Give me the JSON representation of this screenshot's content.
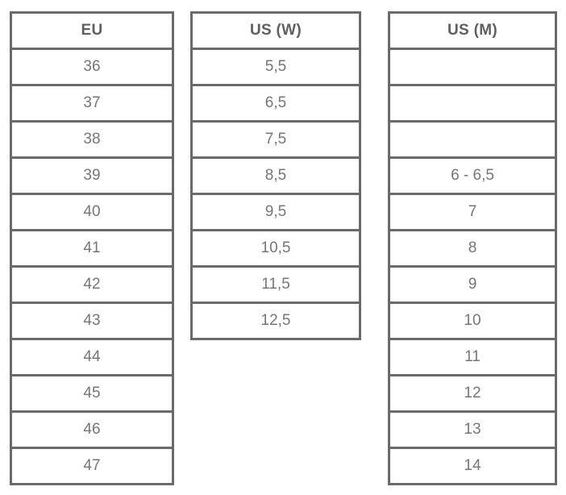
{
  "chart_data": {
    "type": "table",
    "title": "",
    "tables": [
      {
        "header": "EU",
        "rows": [
          "36",
          "37",
          "38",
          "39",
          "40",
          "41",
          "42",
          "43",
          "44",
          "45",
          "46",
          "47"
        ]
      },
      {
        "header": "US (W)",
        "rows": [
          "5,5",
          "6,5",
          "7,5",
          "8,5",
          "9,5",
          "10,5",
          "11,5",
          "12,5"
        ]
      },
      {
        "header": "US (M)",
        "rows": [
          "",
          "",
          "",
          "6 - 6,5",
          "7",
          "8",
          "9",
          "10",
          "11",
          "12",
          "13",
          "14"
        ]
      }
    ]
  },
  "colors": {
    "border": "#6a6a6a",
    "header_text": "#5f5f5f",
    "cell_text": "#767676",
    "background": "#ffffff"
  }
}
